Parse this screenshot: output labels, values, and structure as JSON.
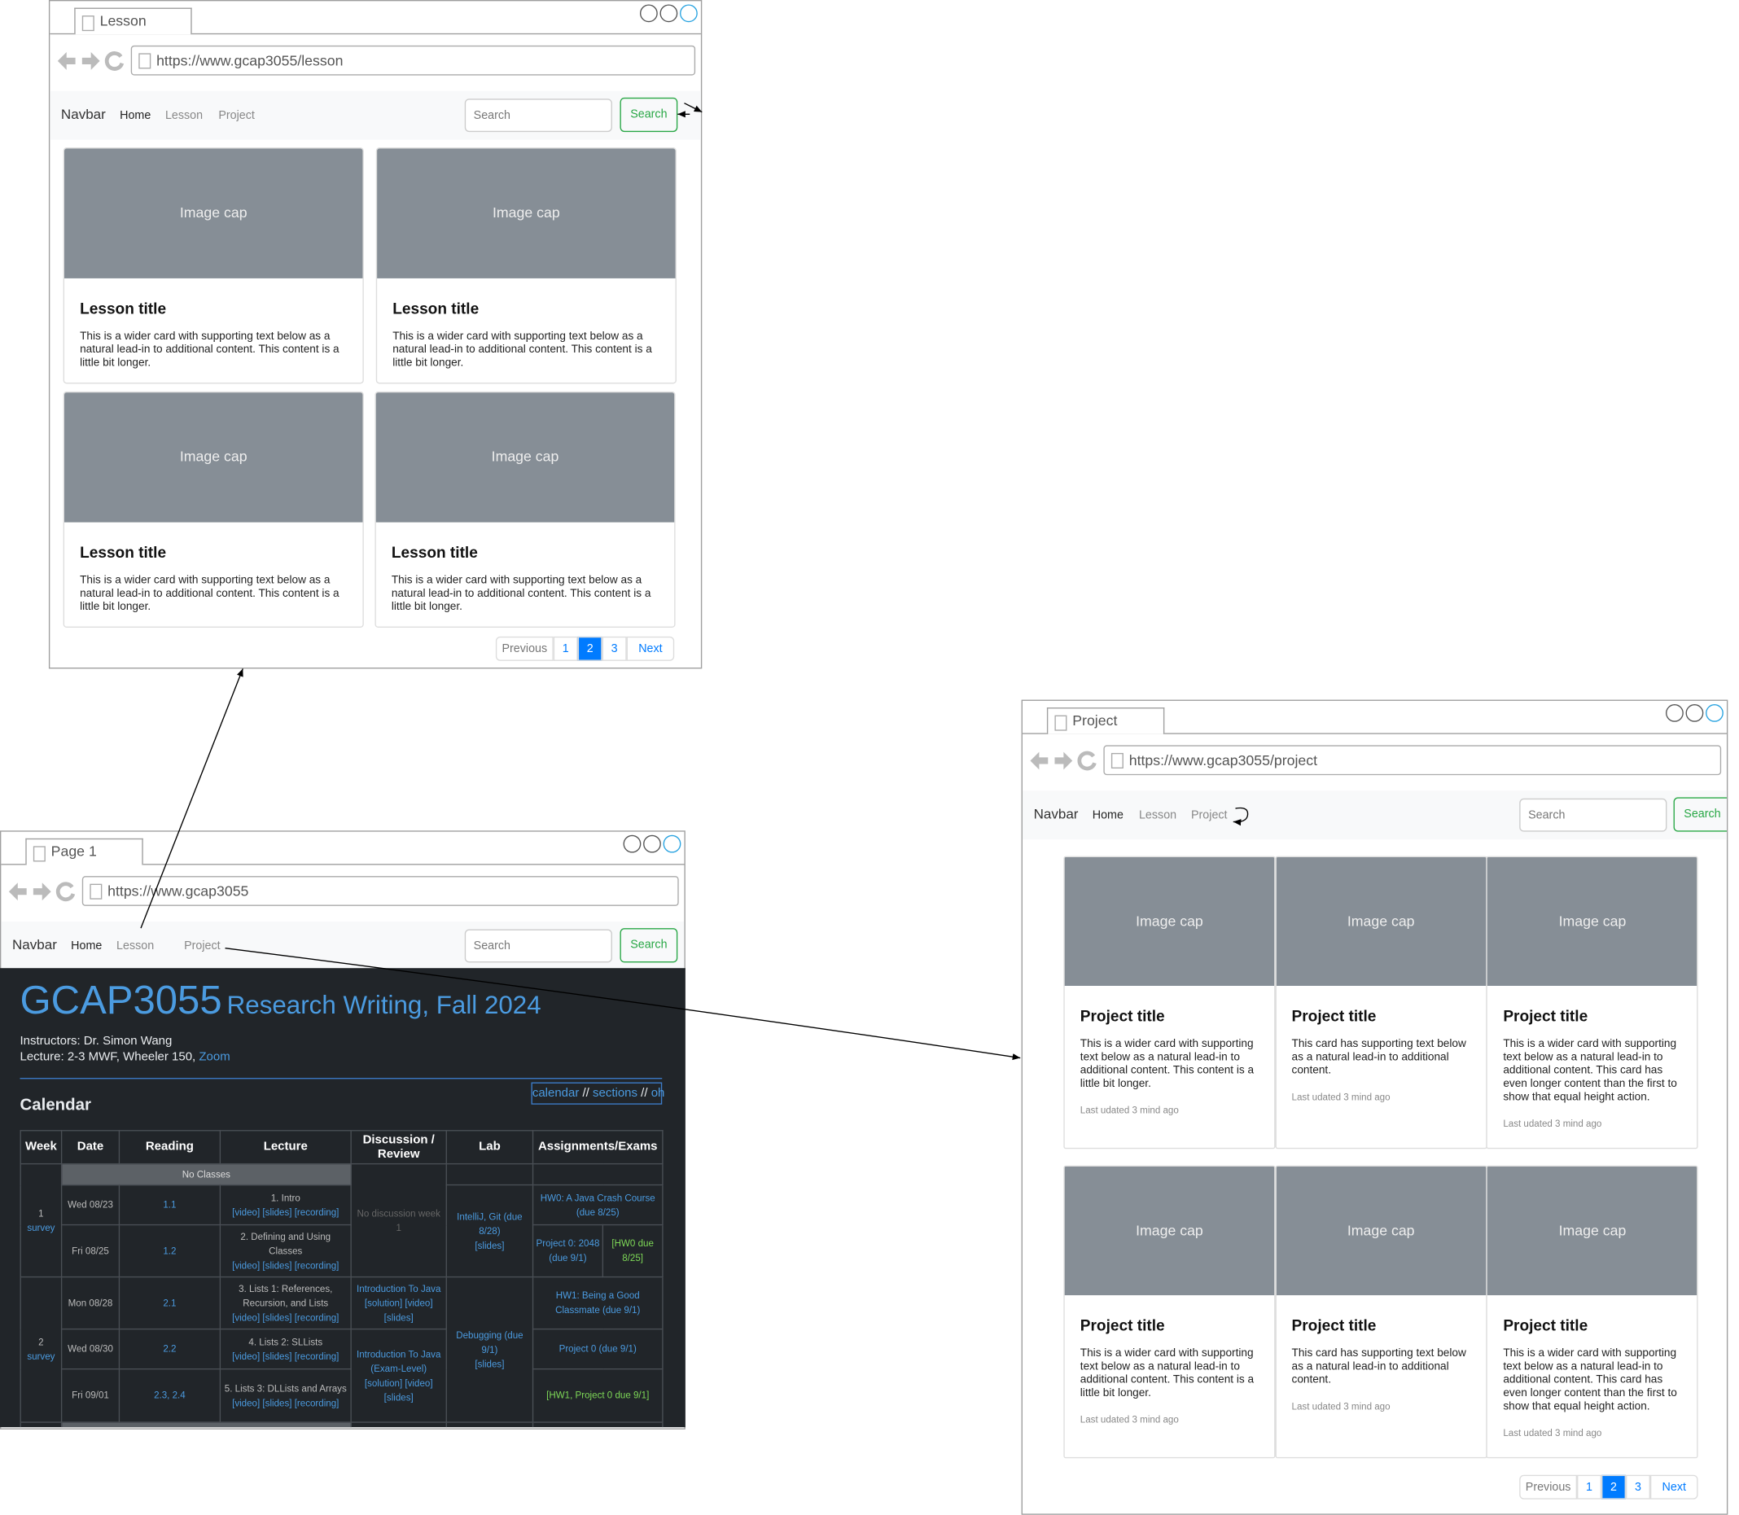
{
  "lesson_window": {
    "tab": "Lesson",
    "url": "https://www.gcap3055/lesson",
    "navbar": {
      "brand": "Navbar",
      "links": [
        "Home",
        "Lesson",
        "Project"
      ],
      "search": "Search",
      "button": "Search"
    },
    "cards": [
      {
        "image": "Image cap",
        "title": "Lesson title",
        "text": "This is a wider card with supporting text below as a natural lead-in to additional content. This content is a little bit longer."
      },
      {
        "image": "Image cap",
        "title": "Lesson title",
        "text": "This is a wider card with supporting text below as a natural lead-in to additional content. This content is a little bit longer."
      },
      {
        "image": "Image cap",
        "title": "Lesson title",
        "text": "This is a wider card with supporting text below as a natural lead-in to additional content. This content is a little bit longer."
      },
      {
        "image": "Image cap",
        "title": "Lesson title",
        "text": "This is a wider card with supporting text below as a natural lead-in to additional content. This content is a little bit longer."
      }
    ],
    "pagination": [
      "Previous",
      "1",
      "2",
      "3",
      "Next"
    ]
  },
  "page1_window": {
    "tab": "Page 1",
    "url": "https://www.gcap3055",
    "navbar": {
      "brand": "Navbar",
      "links": [
        "Home",
        "Lesson",
        "Project"
      ],
      "search": "Search",
      "button": "Search"
    },
    "site": {
      "title": "GCAP3055",
      "subtitle": "Research Writing, Fall 2024",
      "instructors": "Instructors: Dr. Simon Wang",
      "lecture": "Lecture: 2-3 MWF, Wheeler 150,",
      "zoom": "Zoom",
      "links": [
        "calendar",
        "//",
        "sections",
        "//",
        "oh"
      ],
      "calendar": {
        "heading": "Calendar",
        "headers": [
          "Week",
          "Date",
          "Reading",
          "Lecture",
          "Discussion / Review",
          "Lab",
          "Assignments/Exams"
        ],
        "no_classes": "No Classes",
        "weeks": [
          {
            "number": "1",
            "link": "survey"
          },
          {
            "number": "2",
            "link": "survey"
          }
        ],
        "days": [
          {
            "date": "Wed 08/23",
            "reading": "1.1",
            "lecture": "1. Intro",
            "links": "[video] [slides] [recording]"
          },
          {
            "date": "Fri 08/25",
            "reading": "1.2",
            "lecture": "2. Defining and Using Classes",
            "links": "[video] [slides] [recording]"
          },
          {
            "date": "Mon 08/28",
            "reading": "2.1",
            "lecture": "3. Lists 1: References, Recursion, and Lists",
            "links": "[video] [slides] [recording]"
          },
          {
            "date": "Wed 08/30",
            "reading": "2.2",
            "lecture": "4. Lists 2: SLLists",
            "links": "[video] [slides] [recording]"
          },
          {
            "date": "Fri 09/01",
            "reading": "2.3, 2.4",
            "lecture": "5. Lists 3: DLLists and Arrays",
            "links": "[video] [slides] [recording]"
          }
        ],
        "discussion": [
          {
            "title": "No discussion week 1"
          },
          {
            "title": "Introduction To Java",
            "links": "[solution] [video]",
            "slides": "[slides]"
          },
          {
            "title": "Introduction To Java (Exam-Level)",
            "links": "[solution] [video]",
            "slides": "[slides]"
          }
        ],
        "labs": [
          {
            "title": "IntelliJ, Git (due 8/28)",
            "slides": "[slides]"
          },
          {
            "title": "Debugging (due 9/1)",
            "slides": "[slides]"
          }
        ],
        "assignments": [
          "HW0: A Java Crash Course (due 8/25)",
          "Project 0: 2048 (due 9/1)",
          "[HW0 due 8/25]",
          "HW1: Being a Good Classmate (due 9/1)",
          "Project 0 (due 9/1)",
          "[HW1, Project 0 due 9/1]"
        ]
      }
    }
  },
  "project_window": {
    "tab": "Project",
    "url": "https://www.gcap3055/project",
    "navbar": {
      "brand": "Navbar",
      "links": [
        "Home",
        "Lesson",
        "Project"
      ],
      "search": "Search",
      "button": "Search"
    },
    "cards": [
      {
        "image": "Image cap",
        "title": "Project title",
        "text": "This is a wider card with supporting text below as a natural lead-in to additional content. This content is a little bit longer.",
        "footer": "Last udated 3 mind ago"
      },
      {
        "image": "Image cap",
        "title": "Project title",
        "text": "This card has supporting text below as a natural lead-in to additional content.",
        "footer": "Last udated 3 mind ago"
      },
      {
        "image": "Image cap",
        "title": "Project title",
        "text": "This is a wider card with supporting text below as a natural lead-in to additional content. This card has even longer content than the first to show that equal height action.",
        "footer": "Last udated 3 mind ago"
      },
      {
        "image": "Image cap",
        "title": "Project title",
        "text": "This is a wider card with supporting text below as a natural lead-in to additional content. This content is a little bit longer.",
        "footer": "Last udated 3 mind ago"
      },
      {
        "image": "Image cap",
        "title": "Project title",
        "text": "This card has supporting text below as a natural lead-in to additional content.",
        "footer": "Last udated 3 mind ago"
      },
      {
        "image": "Image cap",
        "title": "Project title",
        "text": "This is a wider card with supporting text below as a natural lead-in to additional content. This card has even longer content than the first to show that equal height action.",
        "footer": "Last udated 3 mind ago"
      }
    ],
    "pagination": [
      "Previous",
      "1",
      "2",
      "3",
      "Next"
    ]
  }
}
